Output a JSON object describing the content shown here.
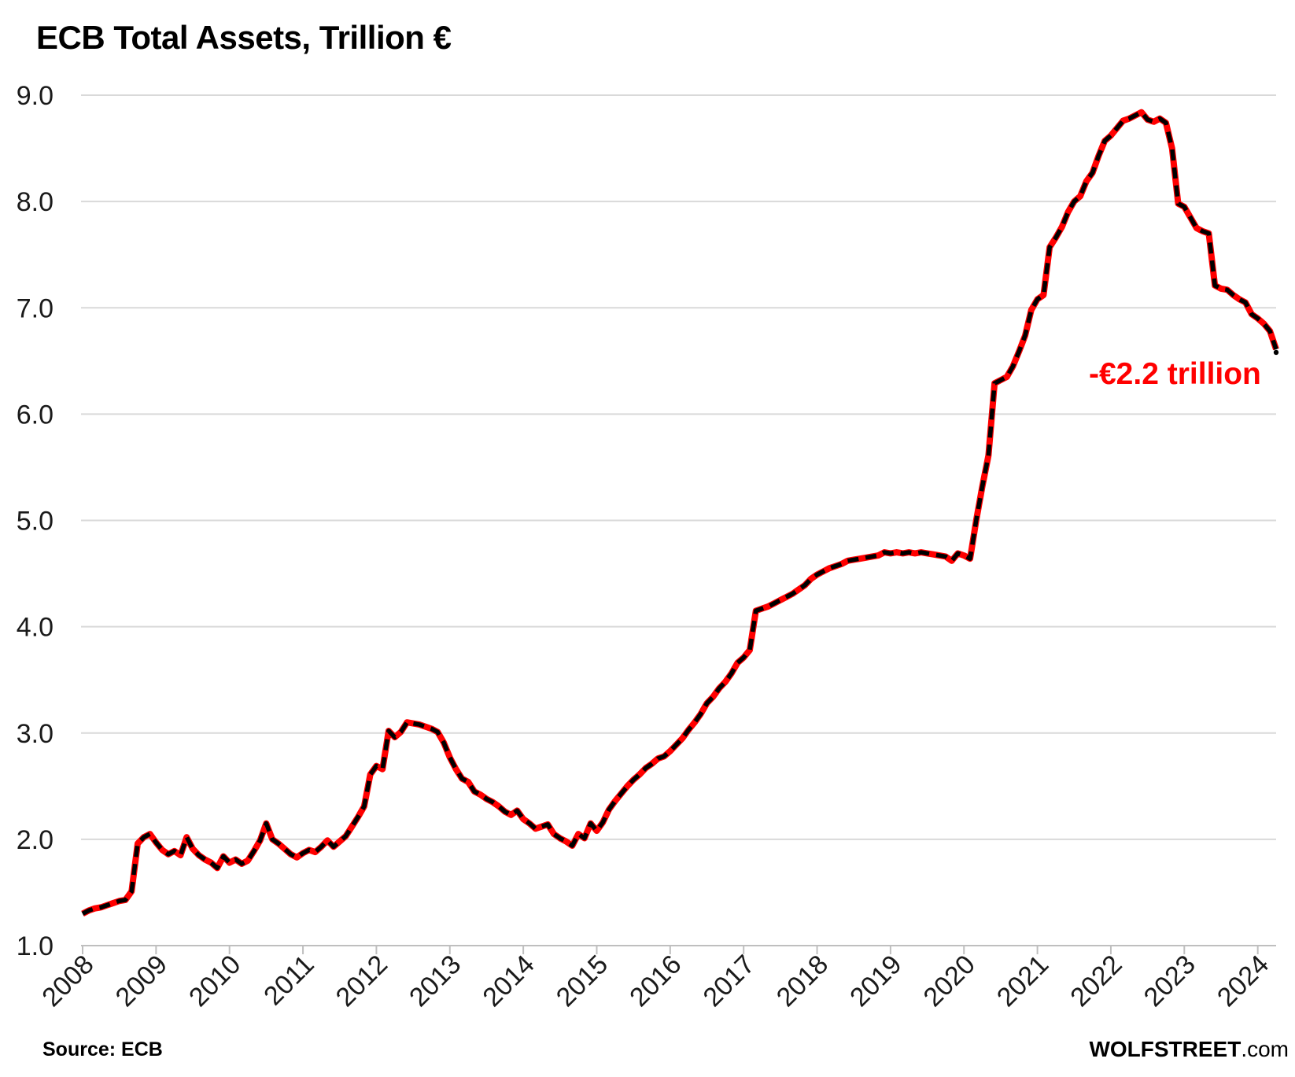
{
  "title": "ECB Total Assets, Trillion €",
  "annotation": {
    "text": "-€2.2 trillion",
    "color": "#FF0000"
  },
  "footer": {
    "source": "Source: ECB",
    "brand": "WOLFSTREET",
    "brand_suffix": ".com"
  },
  "chart_data": {
    "type": "line",
    "title": "ECB Total Assets, Trillion €",
    "xlabel": "",
    "ylabel": "",
    "ylim": [
      1.0,
      9.0
    ],
    "yticks": [
      1,
      2,
      3,
      4,
      5,
      6,
      7,
      8,
      9
    ],
    "ytick_labels": [
      "1.0",
      "2.0",
      "3.0",
      "4.0",
      "5.0",
      "6.0",
      "7.0",
      "8.0",
      "9.0"
    ],
    "grid": "horizontal",
    "legend": "none",
    "frequency": "monthly",
    "x_start": "2008-01",
    "x_end": "2024-04",
    "xtick_years": [
      "2008",
      "2009",
      "2010",
      "2011",
      "2012",
      "2013",
      "2014",
      "2015",
      "2016",
      "2017",
      "2018",
      "2019",
      "2020",
      "2021",
      "2022",
      "2023",
      "2024"
    ],
    "line_color": "#FF0000",
    "dash_color": "#000000",
    "annotation": {
      "text": "-€2.2 trillion",
      "color": "#FF0000"
    },
    "series": [
      {
        "name": "ECB total assets, trillion €",
        "values": [
          1.3,
          1.33,
          1.35,
          1.36,
          1.38,
          1.4,
          1.42,
          1.43,
          1.51,
          1.96,
          2.02,
          2.05,
          1.97,
          1.9,
          1.86,
          1.89,
          1.85,
          2.02,
          1.91,
          1.85,
          1.81,
          1.78,
          1.73,
          1.84,
          1.78,
          1.81,
          1.77,
          1.8,
          1.89,
          1.99,
          2.15,
          2.0,
          1.96,
          1.91,
          1.86,
          1.83,
          1.87,
          1.9,
          1.88,
          1.93,
          1.99,
          1.93,
          1.98,
          2.03,
          2.12,
          2.21,
          2.31,
          2.61,
          2.69,
          2.66,
          3.02,
          2.96,
          3.01,
          3.1,
          3.09,
          3.08,
          3.06,
          3.04,
          3.01,
          2.91,
          2.77,
          2.66,
          2.57,
          2.54,
          2.45,
          2.42,
          2.38,
          2.35,
          2.31,
          2.26,
          2.23,
          2.27,
          2.19,
          2.15,
          2.1,
          2.12,
          2.14,
          2.05,
          2.01,
          1.98,
          1.94,
          2.05,
          2.01,
          2.15,
          2.08,
          2.16,
          2.28,
          2.36,
          2.43,
          2.5,
          2.56,
          2.61,
          2.67,
          2.71,
          2.76,
          2.78,
          2.83,
          2.89,
          2.95,
          3.03,
          3.1,
          3.18,
          3.28,
          3.34,
          3.42,
          3.48,
          3.56,
          3.66,
          3.71,
          3.78,
          4.15,
          4.17,
          4.19,
          4.22,
          4.25,
          4.28,
          4.31,
          4.35,
          4.39,
          4.45,
          4.49,
          4.52,
          4.55,
          4.57,
          4.59,
          4.62,
          4.63,
          4.64,
          4.65,
          4.66,
          4.67,
          4.7,
          4.69,
          4.7,
          4.69,
          4.7,
          4.69,
          4.7,
          4.69,
          4.68,
          4.67,
          4.66,
          4.62,
          4.69,
          4.67,
          4.64,
          5.0,
          5.32,
          5.61,
          6.29,
          6.32,
          6.35,
          6.45,
          6.59,
          6.74,
          6.98,
          7.08,
          7.12,
          7.57,
          7.66,
          7.76,
          7.9,
          8.0,
          8.05,
          8.19,
          8.27,
          8.43,
          8.57,
          8.62,
          8.69,
          8.76,
          8.78,
          8.81,
          8.84,
          8.77,
          8.75,
          8.78,
          8.74,
          8.5,
          7.98,
          7.95,
          7.85,
          7.75,
          7.72,
          7.7,
          7.21,
          7.18,
          7.17,
          7.12,
          7.08,
          7.05,
          6.94,
          6.9,
          6.85,
          6.78,
          6.61
        ]
      }
    ]
  }
}
